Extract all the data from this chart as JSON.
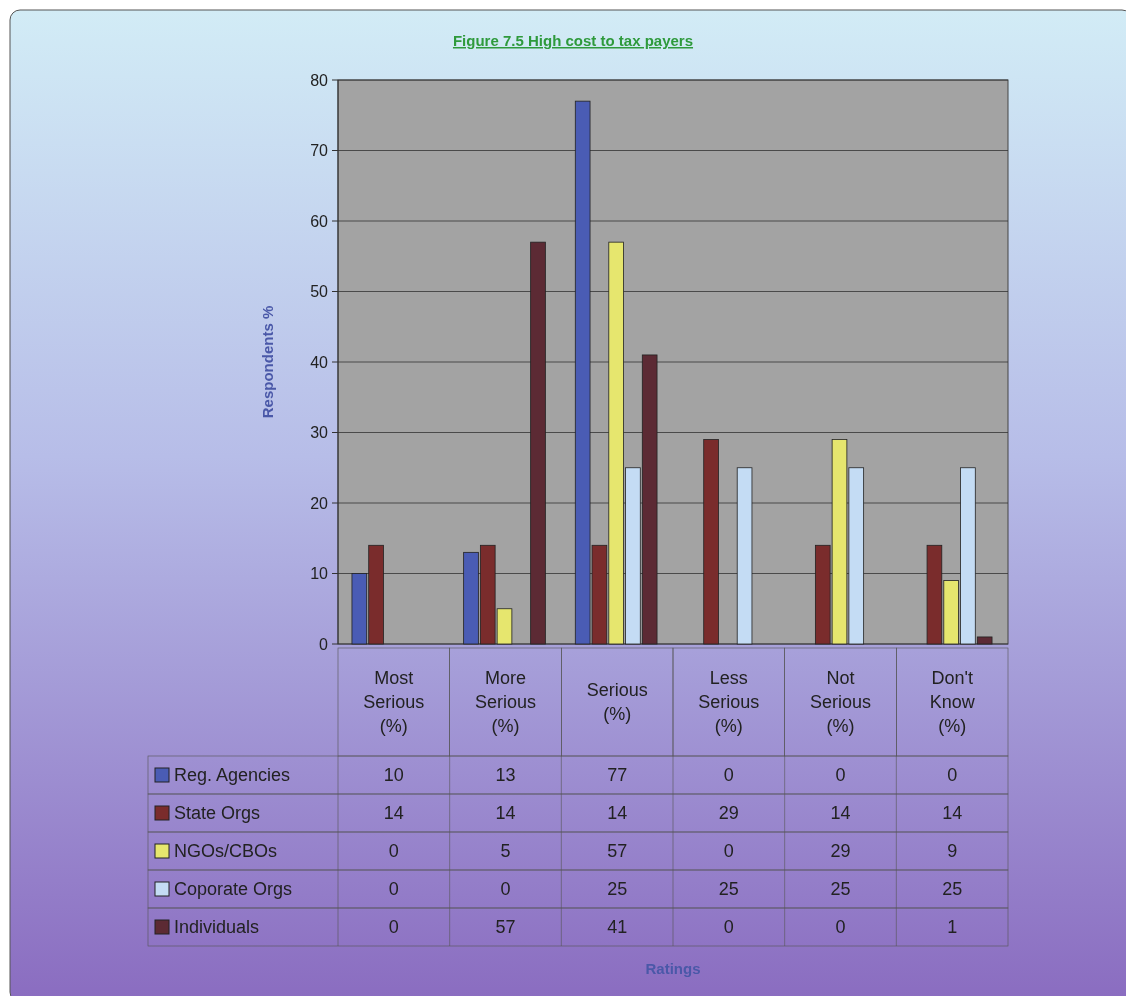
{
  "chart_data": {
    "type": "bar",
    "title": "Figure 7.5 High cost to tax payers",
    "annotations": [
      "Ratings"
    ],
    "ylabel": "Respondents %",
    "categories": [
      "Most Serious (%)",
      "More Serious (%)",
      "Serious (%)",
      "Less Serious (%)",
      "Not Serious (%)",
      "Don't Know (%)"
    ],
    "series": [
      {
        "name": "Reg. Agencies",
        "color": "#4a5cb4",
        "values": [
          10,
          13,
          77,
          0,
          0,
          0
        ]
      },
      {
        "name": "State Orgs",
        "color": "#7a2c2c",
        "values": [
          14,
          14,
          14,
          29,
          14,
          14
        ]
      },
      {
        "name": "NGOs/CBOs",
        "color": "#e6e66e",
        "values": [
          0,
          5,
          57,
          0,
          29,
          9
        ]
      },
      {
        "name": "Coporate Orgs",
        "color": "#c4dcf4",
        "values": [
          0,
          0,
          25,
          25,
          25,
          25
        ]
      },
      {
        "name": "Individuals",
        "color": "#5c2a34",
        "values": [
          0,
          57,
          41,
          0,
          0,
          1
        ]
      }
    ],
    "ylim": [
      0,
      80
    ],
    "yticks": [
      0,
      10,
      20,
      30,
      40,
      50,
      60,
      70,
      80
    ],
    "grid": "y",
    "legend": "bottom",
    "data_labels": true
  }
}
